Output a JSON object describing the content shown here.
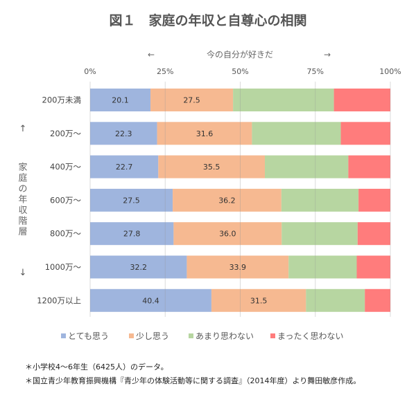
{
  "chart_data": {
    "type": "bar",
    "orientation": "horizontal",
    "stacked": true,
    "title": "図１　家庭の年収と自尊心の相関",
    "xlabel": "今の自分が好きだ",
    "xlabel_arrows": [
      "←",
      "→"
    ],
    "ylabel": "家庭の年収階層",
    "ylabel_arrows": [
      "↑",
      "↓"
    ],
    "xlim": [
      0,
      100
    ],
    "xticks": [
      "0%",
      "25%",
      "50%",
      "75%",
      "100%"
    ],
    "grid": true,
    "legend_position": "bottom",
    "categories": [
      "200万未満",
      "200万～",
      "400万～",
      "600万～",
      "800万～",
      "1000万～",
      "1200万以上"
    ],
    "series": [
      {
        "name": "とても思う",
        "color": "#9fb5de",
        "values": [
          20.1,
          22.3,
          22.7,
          27.5,
          27.8,
          32.2,
          40.4
        ],
        "labeled": true
      },
      {
        "name": "少し思う",
        "color": "#f6b991",
        "values": [
          27.5,
          31.6,
          35.5,
          36.2,
          36.0,
          33.9,
          31.5
        ],
        "labeled": true
      },
      {
        "name": "あまり思わない",
        "color": "#b7d6a1",
        "values": [
          33.6,
          29.6,
          27.8,
          25.7,
          25.3,
          22.7,
          19.6
        ],
        "labeled": false
      },
      {
        "name": "まったく思わない",
        "color": "#ff7c7c",
        "values": [
          18.8,
          16.5,
          14.0,
          10.6,
          10.9,
          11.2,
          8.5
        ],
        "labeled": false
      }
    ]
  },
  "notes": [
    "＊小学校4～6年生（6425人）のデータ。",
    "＊国立青少年教育振興機構『青少年の体験活動等に関する調査』（2014年度）より舞田敏彦作成。"
  ]
}
